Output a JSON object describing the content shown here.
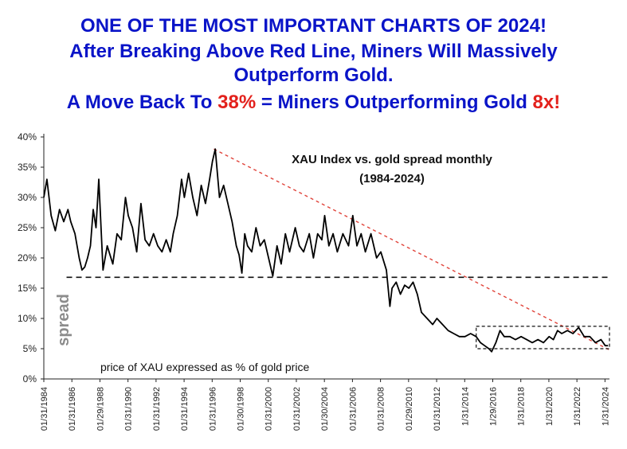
{
  "headline": {
    "line1": "ONE OF THE MOST IMPORTANT CHARTS OF 2024!",
    "line2": "After Breaking Above Red Line, Miners Will Massively",
    "line3": "Outperform Gold.",
    "line4_a": "A Move Back To ",
    "line4_b": "38%",
    "line4_c": " = Miners Outperforming Gold ",
    "line4_d": "8x",
    "line4_e": "!"
  },
  "chart_data": {
    "type": "line",
    "title": "XAU Index vs. gold spread monthly",
    "subtitle": "(1984-2024)",
    "ylabel": "spread",
    "annotation": "price of XAU expressed as % of gold price",
    "ylim": [
      0,
      40
    ],
    "xlim": [
      1984.08,
      2024.4
    ],
    "y_ticks": [
      "0%",
      "5%",
      "10%",
      "15%",
      "20%",
      "25%",
      "30%",
      "35%",
      "40%"
    ],
    "x_tick_labels": [
      "01/31/1984",
      "01/31/1986",
      "01/29/1988",
      "01/31/1990",
      "01/31/1992",
      "01/31/1994",
      "01/31/1996",
      "01/30/1998",
      "01/31/2000",
      "01/31/2002",
      "01/30/2004",
      "01/31/2006",
      "01/31/2008",
      "01/29/2010",
      "01/31/2012",
      "1/31/2014",
      "1/29/2016",
      "1/31/2018",
      "1/31/2020",
      "1/31/2022",
      "1/31/2024"
    ],
    "series": [
      {
        "name": "",
        "x": [
          1984.08,
          1984.3,
          1984.6,
          1984.9,
          1985.2,
          1985.5,
          1985.8,
          1986.0,
          1986.3,
          1986.6,
          1986.8,
          1987.0,
          1987.2,
          1987.4,
          1987.6,
          1987.8,
          1988.0,
          1988.3,
          1988.6,
          1989.0,
          1989.3,
          1989.6,
          1989.9,
          1990.1,
          1990.4,
          1990.7,
          1991.0,
          1991.3,
          1991.6,
          1991.9,
          1992.2,
          1992.5,
          1992.8,
          1993.1,
          1993.3,
          1993.6,
          1993.9,
          1994.1,
          1994.4,
          1994.7,
          1995.0,
          1995.3,
          1995.6,
          1995.9,
          1996.1,
          1996.3,
          1996.6,
          1996.9,
          1997.2,
          1997.5,
          1997.8,
          1998.0,
          1998.2,
          1998.4,
          1998.6,
          1998.9,
          1999.2,
          1999.5,
          1999.8,
          2000.1,
          2000.4,
          2000.7,
          2001.0,
          2001.3,
          2001.6,
          2002.0,
          2002.3,
          2002.6,
          2003.0,
          2003.3,
          2003.6,
          2003.9,
          2004.1,
          2004.4,
          2004.7,
          2005.0,
          2005.4,
          2005.8,
          2006.1,
          2006.4,
          2006.7,
          2007.0,
          2007.4,
          2007.8,
          2008.1,
          2008.5,
          2008.75,
          2008.9,
          2009.2,
          2009.5,
          2009.8,
          2010.1,
          2010.4,
          2010.7,
          2011.0,
          2011.4,
          2011.8,
          2012.1,
          2012.5,
          2012.9,
          2013.3,
          2013.7,
          2014.1,
          2014.5,
          2014.9,
          2015.2,
          2015.5,
          2015.8,
          2016.0,
          2016.3,
          2016.6,
          2016.9,
          2017.3,
          2017.7,
          2018.1,
          2018.5,
          2018.9,
          2019.3,
          2019.7,
          2020.1,
          2020.4,
          2020.7,
          2021.0,
          2021.4,
          2021.8,
          2022.2,
          2022.6,
          2023.0,
          2023.4,
          2023.8,
          2024.1,
          2024.3
        ],
        "values": [
          30,
          33,
          27,
          24.5,
          28,
          26,
          28,
          26,
          24,
          20,
          18,
          18.5,
          20,
          22,
          28,
          25,
          33,
          18,
          22,
          19,
          24,
          23,
          30,
          27,
          25,
          21,
          29,
          23,
          22,
          24,
          22,
          21,
          23,
          21,
          24,
          27,
          33,
          30,
          34,
          30,
          27,
          32,
          29,
          33,
          36,
          38,
          30,
          32,
          29,
          26,
          22,
          20.5,
          17.5,
          24,
          22,
          21,
          25,
          22,
          23,
          20,
          17,
          22,
          19,
          24,
          21,
          25,
          22,
          21,
          24,
          20,
          24,
          23,
          27,
          22,
          24,
          21,
          24,
          22,
          27,
          22,
          24,
          21,
          24,
          20,
          21,
          18,
          12,
          15,
          16,
          14,
          15.5,
          15,
          16,
          14,
          11,
          10,
          9,
          10,
          9,
          8,
          7.5,
          7,
          7,
          7.5,
          7,
          6,
          5.5,
          5,
          4.5,
          6,
          8,
          7,
          7,
          6.5,
          7,
          6.5,
          6,
          6.5,
          6,
          7,
          6.5,
          8,
          7.5,
          8,
          7.5,
          8.5,
          7,
          7,
          6,
          6.5,
          5.5,
          5.5
        ]
      }
    ],
    "support_line_level": 16.8,
    "resistance_line": {
      "from": [
        1996.2,
        38
      ],
      "to": [
        2024.4,
        4.8
      ]
    },
    "range_box": {
      "x": [
        2014.9,
        2024.4
      ],
      "y": [
        5,
        8.7
      ]
    },
    "colors": {
      "headline": "#0a14c8",
      "highlight": "#e3211c",
      "series": "#000000",
      "trend_line": "#e0433a",
      "axis": "#222222",
      "ylabel": "#8c8c8c"
    }
  }
}
